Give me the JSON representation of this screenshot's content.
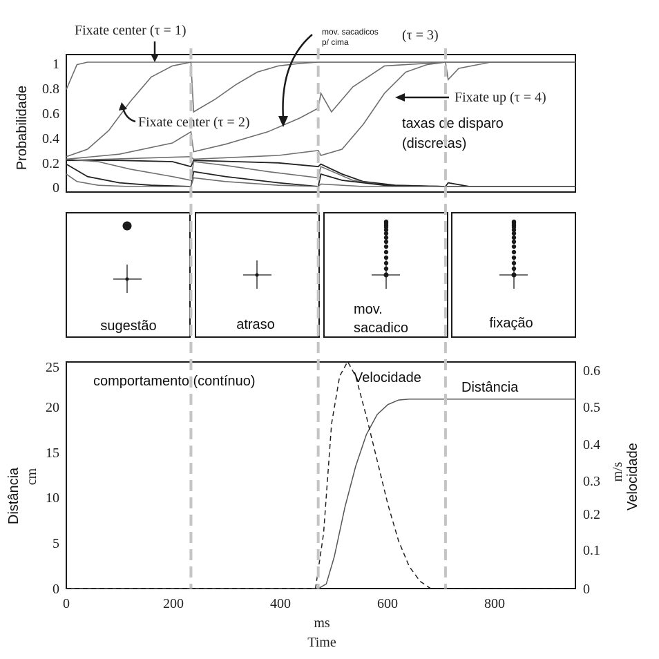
{
  "chart_data": [
    {
      "type": "line",
      "ylabel": "Probabilidade",
      "ylim": [
        0,
        1
      ],
      "yticks": [
        "0",
        "0.2",
        "0.4",
        "0.6",
        "0.8",
        "1"
      ],
      "xlim": [
        0,
        960
      ],
      "phase_boundaries_ms": [
        235,
        475,
        715
      ],
      "annotations": {
        "fixate_center_1": "Fixate center (τ = 1)",
        "fixate_center_2": "Fixate center (τ = 2)",
        "sacadicos": "mov. sacadicos p/ cima",
        "tau3": "(τ = 3)",
        "fixate_up_4": "Fixate up (τ = 4)",
        "taxas_line1": "taxas de disparo",
        "taxas_line2": "(discretas)"
      },
      "series": [
        {
          "x": [
            0,
            20,
            40,
            80,
            120,
            200,
            235,
            240,
            480,
            500,
            540,
            715,
            730,
            760,
            960
          ],
          "y": [
            0.78,
            0.98,
            1.0,
            1.0,
            1.0,
            1.0,
            1.0,
            1.0,
            1.0,
            1.0,
            1.0,
            1.0,
            1.0,
            1.0,
            1.0
          ]
        },
        {
          "x": [
            0,
            40,
            80,
            120,
            160,
            200,
            235,
            240,
            280,
            320,
            360,
            400,
            440,
            475,
            480,
            560,
            715,
            960
          ],
          "y": [
            0.24,
            0.3,
            0.45,
            0.68,
            0.88,
            0.97,
            1.0,
            0.6,
            0.7,
            0.82,
            0.92,
            0.97,
            0.99,
            1.0,
            1.0,
            1.0,
            1.0,
            1.0
          ]
        },
        {
          "x": [
            0,
            100,
            200,
            235,
            240,
            300,
            380,
            440,
            475,
            480,
            500,
            540,
            600,
            715,
            960
          ],
          "y": [
            0.22,
            0.26,
            0.35,
            0.44,
            0.28,
            0.34,
            0.44,
            0.55,
            0.63,
            0.75,
            0.6,
            0.8,
            0.97,
            1.0,
            1.0
          ]
        },
        {
          "x": [
            0,
            235,
            240,
            400,
            475,
            480,
            520,
            560,
            600,
            640,
            680,
            715,
            720,
            740,
            800,
            960
          ],
          "y": [
            0.21,
            0.24,
            0.22,
            0.25,
            0.29,
            0.25,
            0.3,
            0.5,
            0.75,
            0.92,
            0.98,
            1.0,
            0.86,
            0.95,
            1.0,
            1.0
          ]
        },
        {
          "x": [
            0,
            100,
            200,
            235,
            240,
            320,
            400,
            475,
            480,
            520,
            560,
            620,
            715,
            960
          ],
          "y": [
            0.21,
            0.21,
            0.2,
            0.16,
            0.21,
            0.2,
            0.19,
            0.16,
            0.18,
            0.1,
            0.04,
            0.01,
            0.0,
            0.0
          ]
        },
        {
          "x": [
            0,
            60,
            120,
            200,
            235,
            240,
            300,
            380,
            475,
            480,
            540,
            600,
            715,
            960
          ],
          "y": [
            0.22,
            0.2,
            0.14,
            0.08,
            0.05,
            0.2,
            0.17,
            0.12,
            0.07,
            0.16,
            0.05,
            0.01,
            0.0,
            0.0
          ]
        },
        {
          "x": [
            0,
            40,
            100,
            160,
            235,
            240,
            300,
            400,
            475,
            480,
            520,
            600,
            715,
            720,
            760,
            960
          ],
          "y": [
            0.18,
            0.08,
            0.03,
            0.01,
            0.0,
            0.12,
            0.08,
            0.03,
            0.0,
            0.1,
            0.05,
            0.01,
            0.0,
            0.03,
            0.0,
            0.0
          ]
        },
        {
          "x": [
            0,
            20,
            60,
            120,
            235,
            240,
            300,
            400,
            475,
            480,
            560,
            715,
            960
          ],
          "y": [
            0.1,
            0.04,
            0.01,
            0.0,
            0.0,
            0.07,
            0.04,
            0.01,
            0.0,
            0.02,
            0.0,
            0.0,
            0.0
          ]
        }
      ]
    },
    {
      "type": "line",
      "xlabel": "ms",
      "xlabel2": "Time",
      "ylabel_left": "Distância",
      "ylabel_left_unit": "cm",
      "ylabel_right": "Velocidade",
      "ylabel_right_unit": "m/s",
      "xlim": [
        0,
        950
      ],
      "ylim_left": [
        0,
        25
      ],
      "ylim_right": [
        0,
        0.6
      ],
      "xticks": [
        "0",
        "200",
        "400",
        "600",
        "800"
      ],
      "yticks_left": [
        "0",
        "5",
        "10",
        "15",
        "20",
        "25"
      ],
      "yticks_right": [
        "0",
        "0.1",
        "0.2",
        "0.3",
        "0.4",
        "0.5",
        "0.6"
      ],
      "annotations": {
        "comportamento": "comportamento (contínuo)",
        "velocidade": "Velocidade",
        "distancia": "Distância"
      },
      "series": [
        {
          "name": "Distância",
          "style": "solid",
          "x": [
            0,
            470,
            485,
            500,
            520,
            540,
            560,
            580,
            600,
            620,
            640,
            660,
            700,
            950
          ],
          "y": [
            0,
            0,
            0.5,
            3.5,
            9,
            13.5,
            17,
            19.2,
            20.3,
            20.8,
            20.9,
            20.9,
            20.9,
            20.9
          ]
        },
        {
          "name": "Velocidade",
          "style": "dashed",
          "x": [
            0,
            465,
            480,
            495,
            510,
            525,
            540,
            560,
            580,
            600,
            620,
            640,
            660,
            680,
            700,
            950
          ],
          "y": [
            0,
            0,
            0.15,
            0.45,
            0.58,
            0.62,
            0.58,
            0.47,
            0.35,
            0.23,
            0.13,
            0.06,
            0.02,
            0.0,
            0.0,
            0.0
          ]
        }
      ]
    }
  ],
  "phases": {
    "labels": [
      "sugestão",
      "atraso",
      "mov.",
      "sacadico",
      "fixação"
    ]
  }
}
